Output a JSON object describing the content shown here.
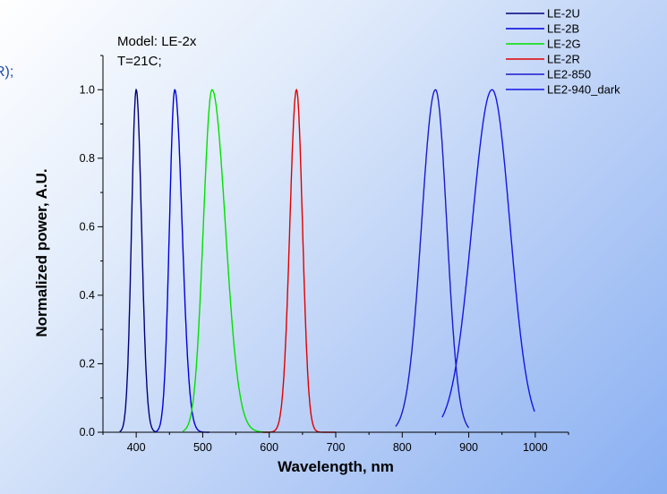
{
  "cut_text": "R);",
  "notes": [
    "Model: LE-2x",
    "T=21C;"
  ],
  "chart_data": {
    "type": "line",
    "xlabel": "Wavelength, nm",
    "ylabel": "Normalized power, A.U.",
    "xlim": [
      350,
      1050
    ],
    "ylim": [
      0,
      1.1
    ],
    "xticks": [
      400,
      500,
      600,
      700,
      800,
      900,
      1000
    ],
    "yticks": [
      0.0,
      0.2,
      0.4,
      0.6,
      0.8,
      1.0
    ],
    "yticklabels": [
      "0.0",
      "0.2",
      "0.4",
      "0.6",
      "0.8",
      "1.0"
    ],
    "legend_position": "top-right",
    "series": [
      {
        "name": "LE-2U",
        "color": "#00007a",
        "peak": 400,
        "width_left": 7,
        "width_right": 8,
        "x_start": 375,
        "x_end": 430
      },
      {
        "name": "LE-2B",
        "color": "#0000dc",
        "peak": 458,
        "width_left": 8,
        "width_right": 11,
        "x_start": 430,
        "x_end": 510
      },
      {
        "name": "LE-2G",
        "color": "#00e000",
        "peak": 514,
        "width_left": 13,
        "width_right": 20,
        "x_start": 470,
        "x_end": 600
      },
      {
        "name": "LE-2R",
        "color": "#e00000",
        "peak": 641,
        "width_left": 10,
        "width_right": 9,
        "x_start": 590,
        "x_end": 700
      },
      {
        "name": "LE2-850",
        "color": "#1a1acc",
        "peak": 850,
        "width_left": 21,
        "width_right": 17,
        "x_start": 790,
        "x_end": 900
      },
      {
        "name": "LE2-940_dark",
        "color": "#1515e6",
        "peak": 935,
        "width_left": 30,
        "width_right": 27,
        "x_start": 860,
        "x_end": 999
      }
    ]
  }
}
